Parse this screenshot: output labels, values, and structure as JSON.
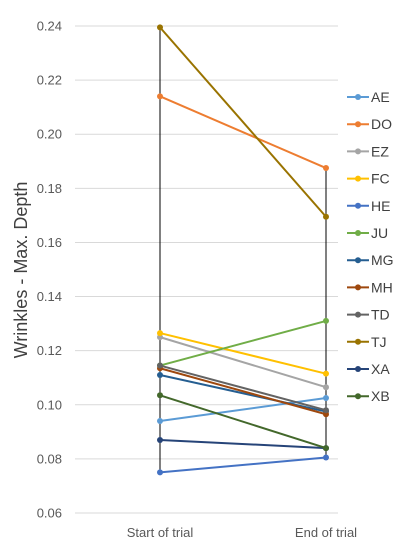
{
  "chart_data": {
    "type": "line",
    "title": "",
    "xlabel": "",
    "ylabel": "Wrinkles - Max. Depth",
    "categories": [
      "Start of trial",
      "End of trial"
    ],
    "ylim": [
      0.06,
      0.24
    ],
    "yticks": [
      "0.06",
      "0.08",
      "0.10",
      "0.12",
      "0.14",
      "0.16",
      "0.18",
      "0.20",
      "0.22",
      "0.24"
    ],
    "grid": true,
    "legend_position": "right",
    "series": [
      {
        "name": "AE",
        "color": "#5b9bd5",
        "values": [
          0.094,
          0.1025
        ]
      },
      {
        "name": "DO",
        "color": "#ed7d31",
        "values": [
          0.214,
          0.1875
        ]
      },
      {
        "name": "EZ",
        "color": "#a5a5a5",
        "values": [
          0.125,
          0.1065
        ]
      },
      {
        "name": "FC",
        "color": "#ffc000",
        "values": [
          0.1265,
          0.1115
        ]
      },
      {
        "name": "HE",
        "color": "#4472c4",
        "values": [
          0.075,
          0.0805
        ]
      },
      {
        "name": "JU",
        "color": "#70ad47",
        "values": [
          0.1145,
          0.131
        ]
      },
      {
        "name": "MG",
        "color": "#255e91",
        "values": [
          0.111,
          0.0975
        ]
      },
      {
        "name": "MH",
        "color": "#9e480e",
        "values": [
          0.1135,
          0.0965
        ]
      },
      {
        "name": "TD",
        "color": "#636363",
        "values": [
          0.1145,
          0.098
        ]
      },
      {
        "name": "TJ",
        "color": "#997300",
        "values": [
          0.2395,
          0.1695
        ]
      },
      {
        "name": "XA",
        "color": "#264478",
        "values": [
          0.087,
          0.084
        ]
      },
      {
        "name": "XB",
        "color": "#43682b",
        "values": [
          0.1035,
          0.084
        ]
      }
    ]
  }
}
